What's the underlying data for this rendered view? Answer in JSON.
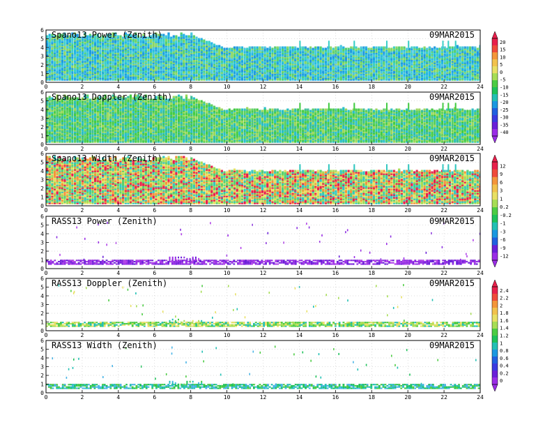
{
  "chart_data": [
    {
      "type": "heatmap",
      "title": "Spano13 Power (Zenith)",
      "date": "09MAR2015",
      "xlim": [
        0,
        24
      ],
      "ylim": [
        0,
        6
      ],
      "x_ticks": [
        "0",
        "2",
        "4",
        "6",
        "8",
        "10",
        "12",
        "14",
        "16",
        "18",
        "20",
        "22",
        "24"
      ],
      "y_ticks": [
        "0",
        "1",
        "2",
        "3",
        "4",
        "5",
        "6"
      ],
      "grid": true,
      "colorbar": {
        "labels": [
          "20",
          "15",
          "10",
          "5",
          "0",
          "-5",
          "-10",
          "-15",
          "-20",
          "-25",
          "-30",
          "-35",
          "-40"
        ],
        "colors": [
          "#e8204b",
          "#f04a3a",
          "#f4963a",
          "#f2c24c",
          "#e8e063",
          "#a6dd55",
          "#4ccc44",
          "#1ec25a",
          "#22c0b4",
          "#1a98e0",
          "#2060e0",
          "#3a3ae0",
          "#6a1fd8",
          "#9a2ce6"
        ]
      }
    },
    {
      "type": "heatmap",
      "title": "Spano13 Doppler (Zenith)",
      "date": "09MAR2015",
      "xlim": [
        0,
        24
      ],
      "ylim": [
        0,
        6
      ],
      "x_ticks": [
        "0",
        "2",
        "4",
        "6",
        "8",
        "10",
        "12",
        "14",
        "16",
        "18",
        "20",
        "22",
        "24"
      ],
      "y_ticks": [
        "0",
        "1",
        "2",
        "3",
        "4",
        "5",
        "6"
      ],
      "grid": true
    },
    {
      "type": "heatmap",
      "title": "Spano13 Width (Zenith)",
      "date": "09MAR2015",
      "xlim": [
        0,
        24
      ],
      "ylim": [
        0,
        6
      ],
      "x_ticks": [
        "0",
        "2",
        "4",
        "6",
        "8",
        "10",
        "12",
        "14",
        "16",
        "18",
        "20",
        "22",
        "24"
      ],
      "y_ticks": [
        "0",
        "1",
        "2",
        "3",
        "4",
        "5",
        "6"
      ],
      "grid": true,
      "colorbar": {
        "labels": [
          "12",
          "9",
          "6",
          "3",
          "1",
          "0.2",
          "-0.2",
          "-1",
          "-3",
          "-6",
          "-9",
          "-12"
        ],
        "colors": [
          "#e8204b",
          "#f04a3a",
          "#f4963a",
          "#f2c24c",
          "#e8e063",
          "#a6dd55",
          "#4ccc44",
          "#1ec25a",
          "#22c0b4",
          "#1a98e0",
          "#2060e0",
          "#6a1fd8",
          "#9a2ce6"
        ]
      }
    },
    {
      "type": "heatmap",
      "title": "RASS13 Power (Zenith)",
      "date": "09MAR2015",
      "xlim": [
        0,
        24
      ],
      "ylim": [
        0,
        6
      ],
      "x_ticks": [
        "0",
        "2",
        "4",
        "6",
        "8",
        "10",
        "12",
        "14",
        "16",
        "18",
        "20",
        "22",
        "24"
      ],
      "y_ticks": [
        "0",
        "1",
        "2",
        "3",
        "4",
        "5",
        "6"
      ],
      "grid": true
    },
    {
      "type": "heatmap",
      "title": "RASS13 Doppler (Zenith)",
      "date": "09MAR2015",
      "xlim": [
        0,
        24
      ],
      "ylim": [
        0,
        6
      ],
      "x_ticks": [
        "0",
        "2",
        "4",
        "6",
        "8",
        "10",
        "12",
        "14",
        "16",
        "18",
        "20",
        "22",
        "24"
      ],
      "y_ticks": [
        "0",
        "1",
        "2",
        "3",
        "4",
        "5",
        "6"
      ],
      "grid": true,
      "colorbar": {
        "labels": [
          "2.4",
          "2.2",
          "2",
          "1.8",
          "1.6",
          "1.4",
          "1.2",
          "1",
          "0.8",
          "0.6",
          "0.4",
          "0.2",
          "0"
        ],
        "colors": [
          "#e8204b",
          "#f04a3a",
          "#f4963a",
          "#f2c24c",
          "#e8e063",
          "#a6dd55",
          "#4ccc44",
          "#1ec25a",
          "#22c0b4",
          "#1a98e0",
          "#2060e0",
          "#3a3ae0",
          "#6a1fd8",
          "#9a2ce6"
        ]
      }
    },
    {
      "type": "heatmap",
      "title": "RASS13 Width (Zenith)",
      "date": "09MAR2015",
      "xlim": [
        0,
        24
      ],
      "ylim": [
        0,
        6
      ],
      "x_ticks": [
        "0",
        "2",
        "4",
        "6",
        "8",
        "10",
        "12",
        "14",
        "16",
        "18",
        "20",
        "22",
        "24"
      ],
      "y_ticks": [
        "0",
        "1",
        "2",
        "3",
        "4",
        "5",
        "6"
      ],
      "grid": true
    }
  ]
}
